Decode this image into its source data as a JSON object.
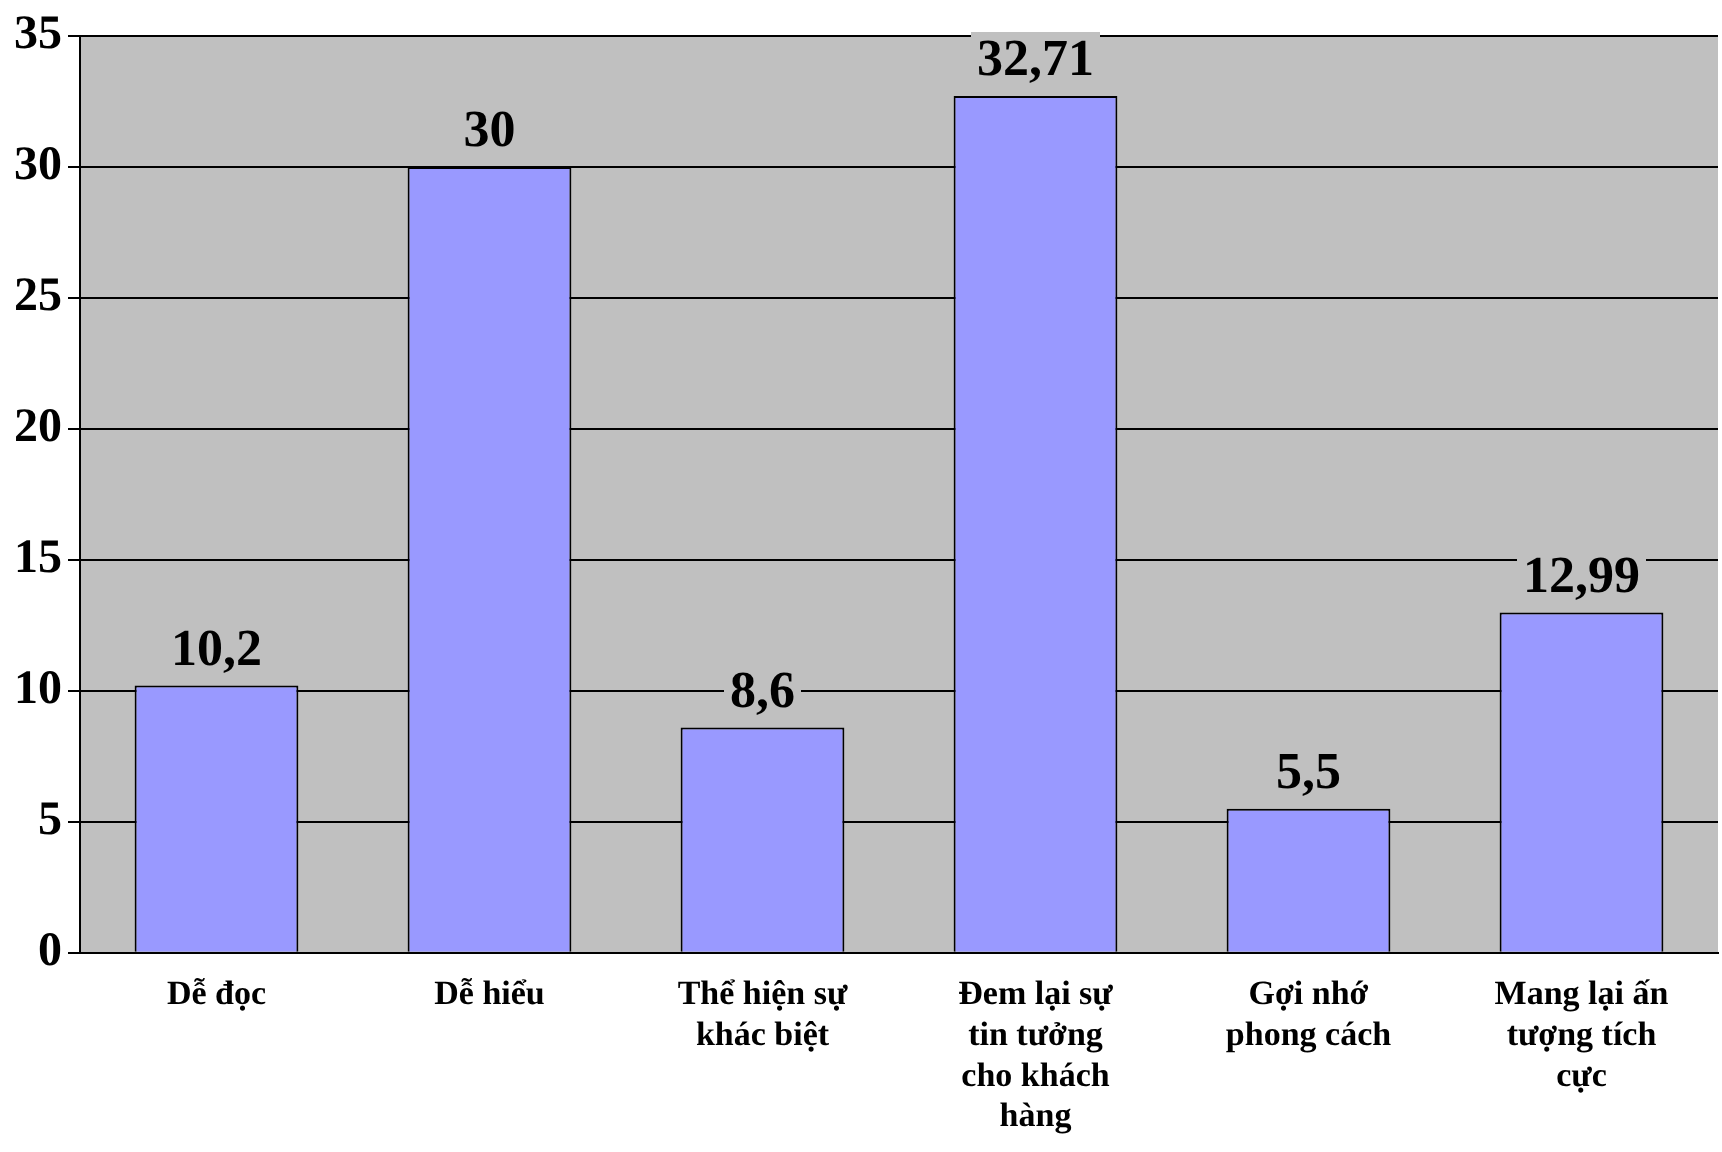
{
  "chart_data": {
    "type": "bar",
    "categories": [
      "Dễ đọc",
      "Dễ hiểu",
      "Thể hiện sự khác biệt",
      "Đem lại sự tin tưởng cho khách hàng",
      "Gợi nhớ phong cách",
      "Mang lại ấn tượng tích cực"
    ],
    "values": [
      10.2,
      30,
      8.6,
      32.71,
      5.5,
      12.99
    ],
    "value_labels": [
      "10,2",
      "30",
      "8,6",
      "32,71",
      "5,5",
      "12,99"
    ],
    "color": "#9999ff",
    "ylim": [
      0,
      35
    ],
    "yticks": [
      0,
      5,
      10,
      15,
      20,
      25,
      30,
      35
    ],
    "grid": "y",
    "legend": false
  }
}
